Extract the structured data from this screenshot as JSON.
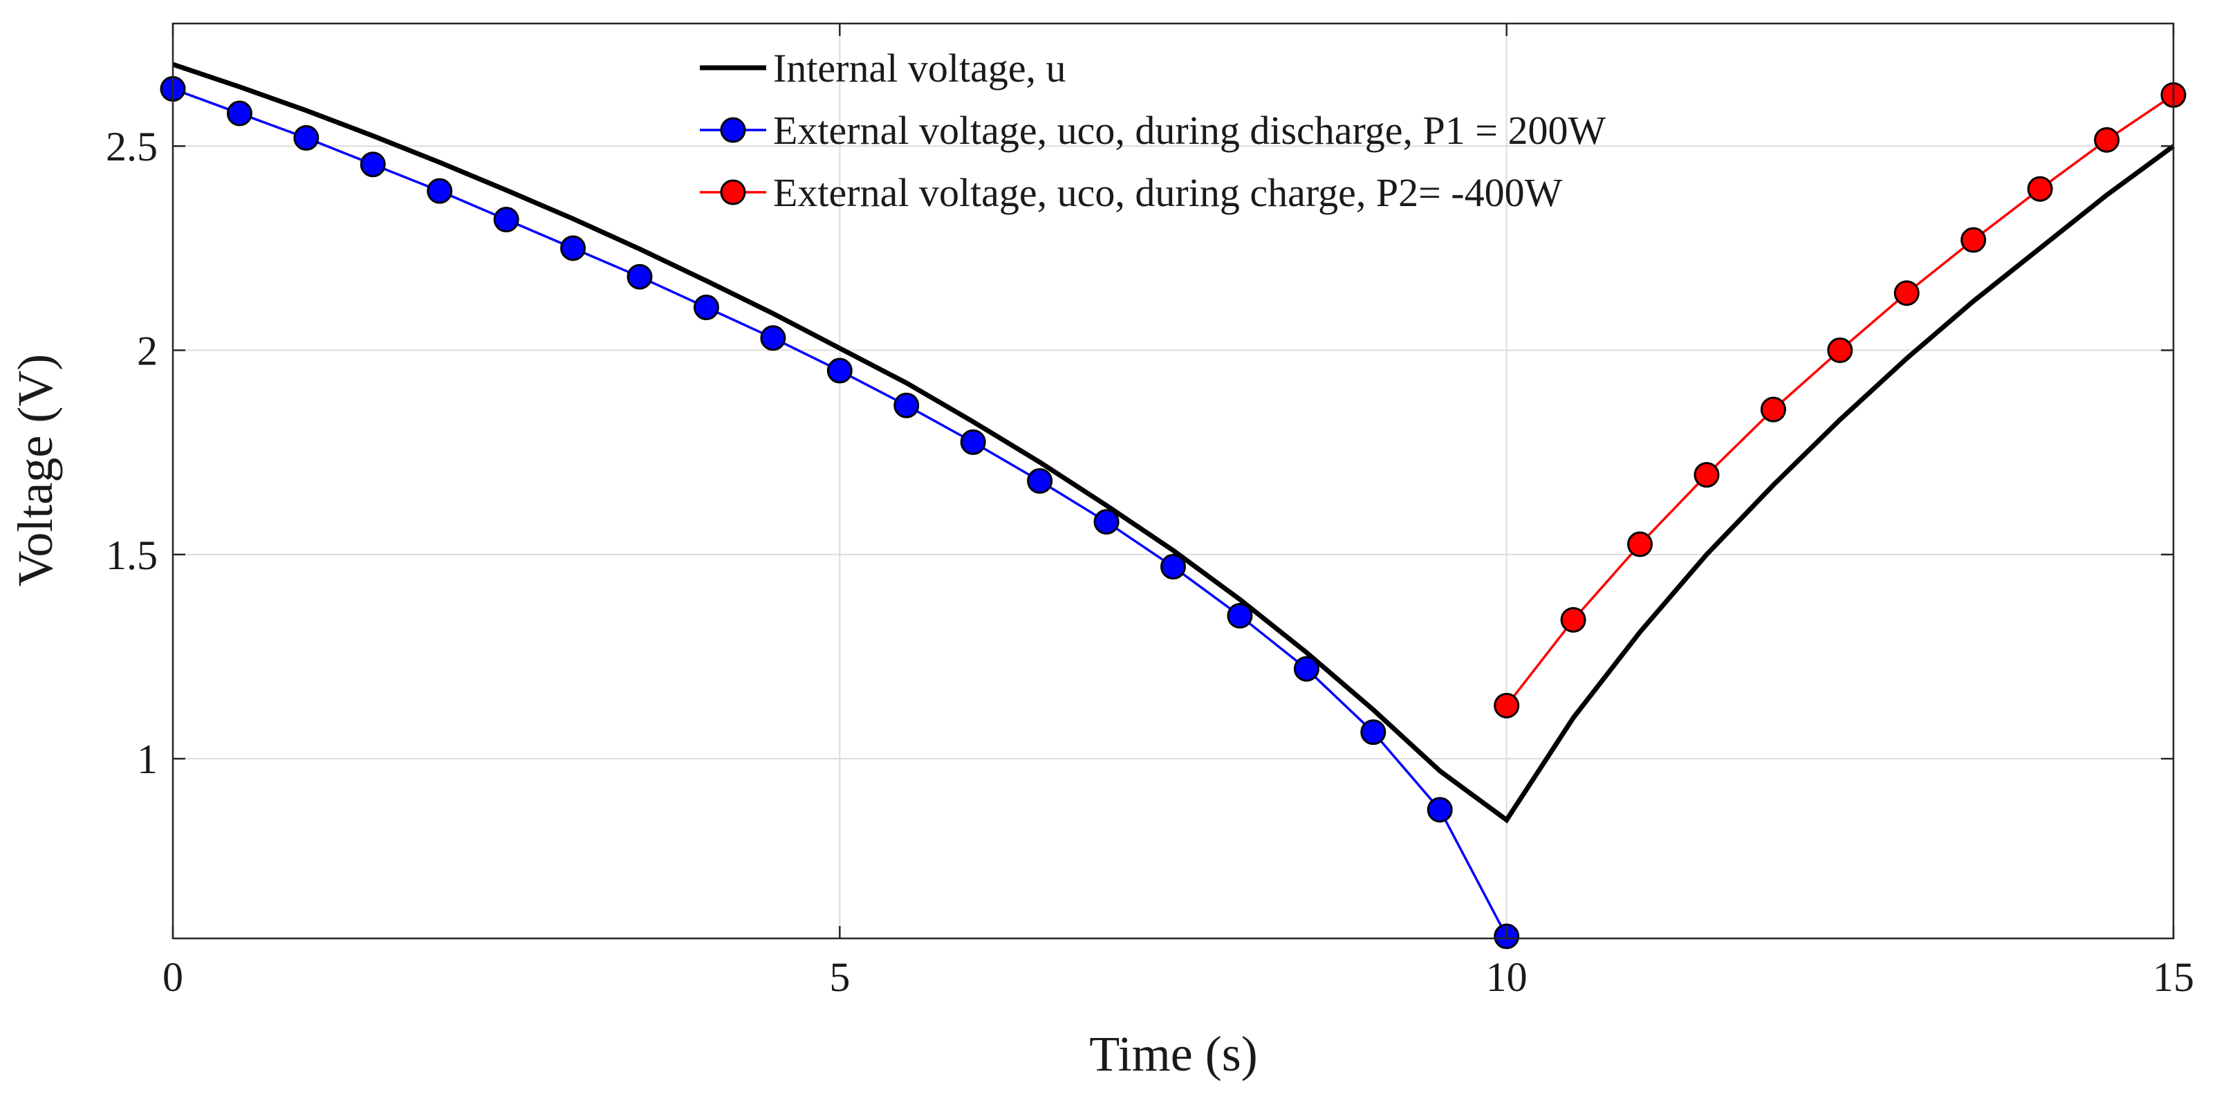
{
  "chart_data": {
    "type": "line",
    "xlabel": "Time (s)",
    "ylabel": "Voltage (V)",
    "xlim": [
      0,
      15
    ],
    "ylim": [
      0.56,
      2.8
    ],
    "grid": true,
    "legend_position": "top-center",
    "x_ticks": [
      0,
      5,
      10,
      15
    ],
    "x_tick_labels": [
      "0",
      "5",
      "10",
      "15"
    ],
    "y_ticks": [
      1,
      1.5,
      2,
      2.5
    ],
    "y_tick_labels": [
      "1",
      "1.5",
      "2",
      "2.5"
    ],
    "series": [
      {
        "name": "Internal voltage, u",
        "color": "#000000",
        "marker": "none",
        "x": [
          0,
          0.5,
          1,
          1.5,
          2,
          2.5,
          3,
          3.5,
          4,
          4.5,
          5,
          5.5,
          6,
          6.5,
          7,
          7.5,
          8,
          8.5,
          9,
          9.5,
          10,
          10.5,
          11,
          11.5,
          12,
          12.5,
          13,
          13.5,
          14,
          14.5,
          15
        ],
        "y": [
          2.7,
          2.645,
          2.587,
          2.525,
          2.46,
          2.392,
          2.322,
          2.248,
          2.17,
          2.09,
          2.005,
          1.92,
          1.825,
          1.726,
          1.62,
          1.51,
          1.39,
          1.26,
          1.12,
          0.97,
          0.85,
          1.1,
          1.31,
          1.5,
          1.67,
          1.83,
          1.98,
          2.12,
          2.25,
          2.38,
          2.5
        ]
      },
      {
        "name": "External voltage, uco, during discharge, P1 = 200W",
        "color": "#0000ff",
        "marker": "circle",
        "x": [
          0,
          0.5,
          1,
          1.5,
          2,
          2.5,
          3,
          3.5,
          4,
          4.5,
          5,
          5.5,
          6,
          6.5,
          7,
          7.5,
          8,
          8.5,
          9,
          9.5,
          10
        ],
        "y": [
          2.64,
          2.58,
          2.52,
          2.455,
          2.39,
          2.32,
          2.25,
          2.18,
          2.105,
          2.03,
          1.95,
          1.865,
          1.775,
          1.68,
          1.58,
          1.47,
          1.35,
          1.22,
          1.065,
          0.875,
          0.565
        ]
      },
      {
        "name": "External voltage, uco, during charge, P2= -400W",
        "color": "#ff0000",
        "marker": "circle",
        "x": [
          10,
          10.5,
          11,
          11.5,
          12,
          12.5,
          13,
          13.5,
          14,
          14.5,
          15
        ],
        "y": [
          1.13,
          1.34,
          1.525,
          1.695,
          1.855,
          2.0,
          2.14,
          2.27,
          2.395,
          2.515,
          2.625
        ]
      }
    ]
  }
}
